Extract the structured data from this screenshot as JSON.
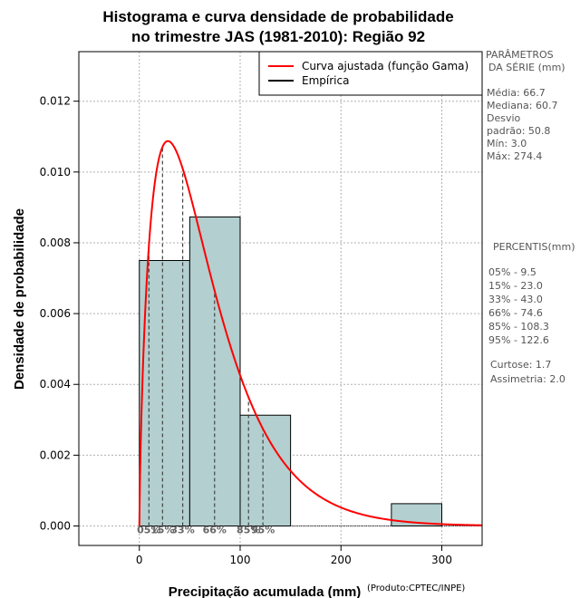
{
  "chart_data": {
    "type": "histogram",
    "title_line1": "Histograma e curva densidade de probabilidade",
    "title_line2": "no trimestre JAS (1981-2010): Região 92",
    "xlabel": "Precipitação acumulada (mm)",
    "ylabel": "Densidade de probabilidade",
    "credit": "(Produto:CPTEC/INPE)",
    "xlim": [
      -60,
      340
    ],
    "ylim": [
      -0.00055,
      0.0134
    ],
    "x_ticks": [
      0,
      100,
      200,
      300
    ],
    "x_tick_labels": [
      "0",
      "100",
      "200",
      "300"
    ],
    "y_ticks": [
      0.0,
      0.002,
      0.004,
      0.006,
      0.008,
      0.01,
      0.012
    ],
    "y_tick_labels": [
      "0.000",
      "0.002",
      "0.004",
      "0.006",
      "0.008",
      "0.010",
      "0.012"
    ],
    "grid": true,
    "bins": [
      {
        "x0": 0,
        "x1": 50,
        "density": 0.0075
      },
      {
        "x0": 50,
        "x1": 100,
        "density": 0.00873
      },
      {
        "x0": 100,
        "x1": 150,
        "density": 0.00313
      },
      {
        "x0": 150,
        "x1": 200,
        "density": 0.0
      },
      {
        "x0": 200,
        "x1": 250,
        "density": 0.0
      },
      {
        "x0": 250,
        "x1": 300,
        "density": 0.00063
      }
    ],
    "gamma_fit": {
      "shape": 1.74,
      "scale": 38.3,
      "x_start": 0,
      "x_end": 340,
      "color": "#ff0000"
    },
    "bar_fill": "#b3cfcf",
    "percentile_marks": [
      {
        "label": "05%",
        "x": 9.5
      },
      {
        "label": "15%",
        "x": 23.0
      },
      {
        "label": "33%",
        "x": 43.0
      },
      {
        "label": "66%",
        "x": 74.6
      },
      {
        "label": "85%",
        "x": 108.3
      },
      {
        "label": "95%",
        "x": 122.6
      }
    ],
    "legend": {
      "position": "top-right",
      "entries": [
        {
          "label": "Curva ajustada (função Gama)",
          "color": "#ff0000"
        },
        {
          "label": "Empírica",
          "color": "#000000"
        }
      ]
    },
    "side_panel": {
      "params_heading_1": "PARÂMETROS",
      "params_heading_2": "DA SÉRIE (mm)",
      "media": "Média:  66.7",
      "mediana": "Mediana:  60.7",
      "desvio_1": "Desvio",
      "desvio_2": "padrão:  50.8",
      "min": "Mín:  3.0",
      "max": "Máx:  274.4",
      "percentis_heading": "PERCENTIS(mm)",
      "percentis": [
        "05% -   9.5",
        "15% -   23.0",
        "33% -   43.0",
        "66% -   74.6",
        "85% -   108.3",
        "95% -   122.6"
      ],
      "curtose": "Curtose:  1.7",
      "assimetria": "Assimetria:  2.0"
    }
  }
}
